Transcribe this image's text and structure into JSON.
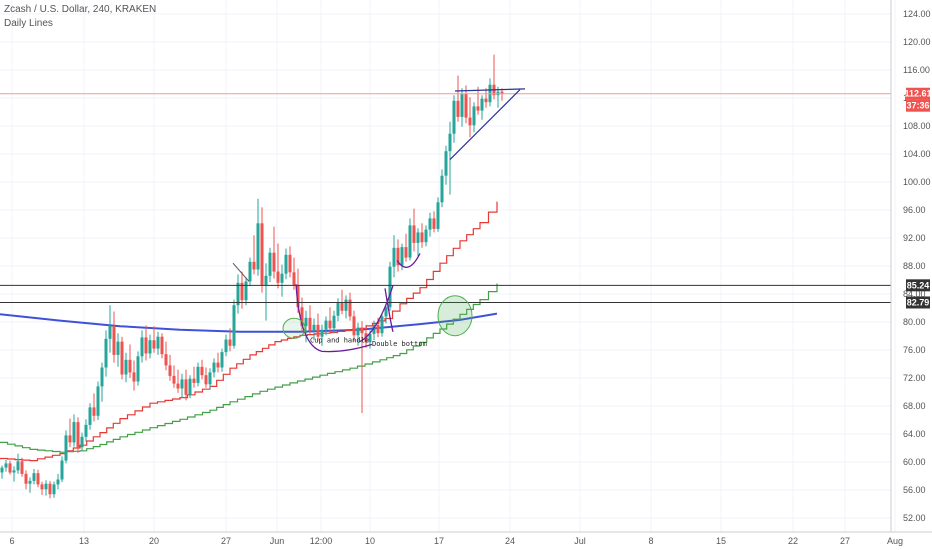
{
  "header": {
    "title": "Zcash / U.S. Dollar, 240, KRAKEN",
    "subtitle": "Daily Lines"
  },
  "colors": {
    "up": "#26a69a",
    "down": "#ef5350",
    "red_line": "#e53935",
    "green_line": "#43a047",
    "blue_line": "#3f51d9",
    "purple": "#6a1b9a",
    "navy": "#283593",
    "sr_line": "#333333",
    "price_line": "#ef9a9a",
    "circle": "#4caf50"
  },
  "chart_data": {
    "type": "candlestick",
    "y_range": [
      50,
      126
    ],
    "x_range": [
      0,
      890
    ],
    "y_ticks": [
      "124.00",
      "120.00",
      "116.00",
      "112.00",
      "108.00",
      "104.00",
      "100.00",
      "96.00",
      "92.00",
      "88.00",
      "84.00",
      "80.00",
      "76.00",
      "72.00",
      "68.00",
      "64.00",
      "60.00",
      "56.00",
      "52.00"
    ],
    "x_ticks": [
      {
        "label": "6",
        "x": 12
      },
      {
        "label": "13",
        "x": 84
      },
      {
        "label": "20",
        "x": 154
      },
      {
        "label": "27",
        "x": 226
      },
      {
        "label": "Jun",
        "x": 277
      },
      {
        "label": "12:00",
        "x": 321
      },
      {
        "label": "10",
        "x": 370
      },
      {
        "label": "17",
        "x": 439
      },
      {
        "label": "24",
        "x": 510
      },
      {
        "label": "Jul",
        "x": 580
      },
      {
        "label": "8",
        "x": 651
      },
      {
        "label": "15",
        "x": 721
      },
      {
        "label": "22",
        "x": 793
      },
      {
        "label": "27",
        "x": 845
      },
      {
        "label": "Aug",
        "x": 895
      }
    ],
    "price_labels": [
      {
        "text": "112.61",
        "value": 112.61,
        "color": "#ef5350"
      },
      {
        "text": "37:36",
        "value": 110.9,
        "color": "#ef5350"
      },
      {
        "text": "85.24",
        "value": 85.24,
        "color": "#333333"
      },
      {
        "text": "82.79",
        "value": 82.79,
        "color": "#333333"
      }
    ],
    "annotations": [
      {
        "text": "Cup and handle",
        "x": 310,
        "y": 77.1
      },
      {
        "text": "Double bottom",
        "x": 372,
        "y": 76.6
      }
    ],
    "horizontal_lines": [
      {
        "name": "current-price",
        "value": 112.61,
        "style": "price"
      },
      {
        "name": "resistance-upper",
        "value": 85.24,
        "style": "sr"
      },
      {
        "name": "resistance-lower",
        "value": 82.79,
        "style": "sr"
      }
    ],
    "blue_line": [
      [
        0,
        81.1
      ],
      [
        60,
        80.2
      ],
      [
        120,
        79.4
      ],
      [
        180,
        78.9
      ],
      [
        240,
        78.6
      ],
      [
        300,
        78.6
      ],
      [
        360,
        78.9
      ],
      [
        420,
        79.7
      ],
      [
        460,
        80.3
      ],
      [
        497,
        81.2
      ]
    ],
    "red_line": [
      [
        0,
        60.5
      ],
      [
        30,
        60.2
      ],
      [
        60,
        61.2
      ],
      [
        80,
        62.4
      ],
      [
        100,
        64.2
      ],
      [
        120,
        66.2
      ],
      [
        150,
        68.4
      ],
      [
        180,
        69.2
      ],
      [
        210,
        70.8
      ],
      [
        230,
        73.4
      ],
      [
        250,
        75.3
      ],
      [
        275,
        77.2
      ],
      [
        300,
        78.1
      ],
      [
        330,
        78.5
      ],
      [
        360,
        79.1
      ],
      [
        385,
        80.5
      ],
      [
        400,
        82.6
      ],
      [
        420,
        84.9
      ],
      [
        440,
        88.4
      ],
      [
        460,
        91.6
      ],
      [
        480,
        94.2
      ],
      [
        497,
        97.2
      ]
    ],
    "green_line": [
      [
        0,
        62.8
      ],
      [
        30,
        61.8
      ],
      [
        60,
        61.4
      ],
      [
        80,
        61.6
      ],
      [
        100,
        62.5
      ],
      [
        120,
        63.6
      ],
      [
        150,
        64.9
      ],
      [
        180,
        66.1
      ],
      [
        210,
        67.4
      ],
      [
        230,
        68.6
      ],
      [
        260,
        70.1
      ],
      [
        290,
        71.3
      ],
      [
        320,
        72.4
      ],
      [
        350,
        73.4
      ],
      [
        380,
        74.6
      ],
      [
        400,
        75.5
      ],
      [
        420,
        77.1
      ],
      [
        440,
        79.0
      ],
      [
        460,
        81.1
      ],
      [
        480,
        83.2
      ],
      [
        497,
        85.5
      ]
    ],
    "candles": [
      [
        2,
        58.5,
        59.5,
        57.6,
        59.2
      ],
      [
        6,
        59.2,
        60.3,
        58.6,
        59.8
      ],
      [
        10,
        59.8,
        60.2,
        58.2,
        58.5
      ],
      [
        14,
        58.5,
        59.4,
        57.2,
        58.8
      ],
      [
        18,
        58.8,
        61.2,
        58.3,
        60.1
      ],
      [
        22,
        60.1,
        60.6,
        57.9,
        58.3
      ],
      [
        26,
        58.3,
        58.8,
        56.1,
        56.9
      ],
      [
        30,
        56.9,
        57.8,
        55.6,
        57.3
      ],
      [
        34,
        57.3,
        59.0,
        56.8,
        58.4
      ],
      [
        38,
        58.4,
        58.9,
        56.4,
        56.8
      ],
      [
        42,
        56.8,
        57.2,
        55.3,
        56.1
      ],
      [
        46,
        56.1,
        57.4,
        55.2,
        56.9
      ],
      [
        50,
        56.9,
        57.3,
        54.8,
        55.4
      ],
      [
        54,
        55.4,
        57.2,
        54.9,
        56.8
      ],
      [
        58,
        56.8,
        58.3,
        56.1,
        57.5
      ],
      [
        62,
        57.5,
        60.8,
        57.1,
        60.2
      ],
      [
        66,
        60.2,
        64.5,
        59.8,
        63.8
      ],
      [
        70,
        63.8,
        66.2,
        62.1,
        62.8
      ],
      [
        74,
        62.8,
        66.8,
        62.2,
        65.7
      ],
      [
        78,
        65.7,
        66.4,
        61.3,
        62.1
      ],
      [
        82,
        62.1,
        64.2,
        61.5,
        63.6
      ],
      [
        86,
        63.6,
        66.1,
        62.9,
        65.3
      ],
      [
        90,
        65.3,
        68.4,
        64.6,
        67.8
      ],
      [
        94,
        67.8,
        69.8,
        65.8,
        66.6
      ],
      [
        98,
        66.6,
        71.5,
        66.0,
        70.8
      ],
      [
        102,
        70.8,
        74.2,
        68.6,
        73.5
      ],
      [
        106,
        73.5,
        78.8,
        72.2,
        77.6
      ],
      [
        110,
        77.6,
        82.4,
        75.6,
        79.4
      ],
      [
        114,
        79.4,
        81.5,
        74.2,
        75.3
      ],
      [
        118,
        75.3,
        78.4,
        73.6,
        77.2
      ],
      [
        122,
        77.2,
        77.9,
        71.8,
        72.5
      ],
      [
        126,
        72.5,
        75.6,
        71.4,
        74.6
      ],
      [
        130,
        74.6,
        76.8,
        72.0,
        72.8
      ],
      [
        134,
        72.8,
        74.5,
        70.2,
        71.5
      ],
      [
        138,
        71.5,
        75.8,
        70.9,
        75.1
      ],
      [
        142,
        75.1,
        78.8,
        74.2,
        77.8
      ],
      [
        146,
        77.8,
        79.5,
        74.5,
        75.5
      ],
      [
        150,
        75.5,
        78.2,
        74.8,
        77.4
      ],
      [
        154,
        77.4,
        79.4,
        75.6,
        76.2
      ],
      [
        158,
        76.2,
        78.6,
        75.3,
        77.9
      ],
      [
        162,
        77.9,
        78.4,
        74.8,
        75.4
      ],
      [
        166,
        75.4,
        77.2,
        73.1,
        73.8
      ],
      [
        170,
        73.8,
        75.3,
        71.6,
        72.3
      ],
      [
        174,
        72.3,
        73.8,
        70.6,
        71.2
      ],
      [
        178,
        71.2,
        73.2,
        69.9,
        70.5
      ],
      [
        182,
        70.5,
        72.6,
        69.2,
        71.8
      ],
      [
        186,
        71.8,
        73.2,
        68.8,
        69.6
      ],
      [
        190,
        69.6,
        72.4,
        69.1,
        71.9
      ],
      [
        194,
        71.9,
        73.6,
        70.6,
        71.3
      ],
      [
        198,
        71.3,
        74.2,
        70.8,
        73.6
      ],
      [
        202,
        73.6,
        74.6,
        71.8,
        72.4
      ],
      [
        206,
        72.4,
        73.5,
        70.6,
        71.1
      ],
      [
        210,
        71.1,
        73.4,
        70.4,
        72.8
      ],
      [
        214,
        72.8,
        74.8,
        72.1,
        74.2
      ],
      [
        218,
        74.2,
        75.6,
        72.8,
        73.5
      ],
      [
        222,
        73.5,
        76.2,
        72.9,
        75.7
      ],
      [
        226,
        75.7,
        78.2,
        75.1,
        77.5
      ],
      [
        230,
        77.5,
        79.1,
        75.8,
        76.6
      ],
      [
        234,
        76.6,
        83.2,
        76.2,
        82.4
      ],
      [
        238,
        82.4,
        86.8,
        81.2,
        85.6
      ],
      [
        242,
        85.6,
        87.2,
        81.9,
        83.1
      ],
      [
        246,
        83.1,
        86.4,
        82.4,
        85.8
      ],
      [
        250,
        85.8,
        89.2,
        85.1,
        88.6
      ],
      [
        254,
        88.6,
        92.4,
        86.8,
        87.5
      ],
      [
        258,
        87.5,
        97.6,
        86.6,
        94.1
      ],
      [
        262,
        94.1,
        96.4,
        84.2,
        85.3
      ],
      [
        266,
        85.3,
        88.4,
        80.2,
        86.6
      ],
      [
        270,
        86.6,
        90.6,
        85.7,
        89.9
      ],
      [
        274,
        89.9,
        93.6,
        86.2,
        87.2
      ],
      [
        278,
        87.2,
        91.2,
        84.8,
        85.6
      ],
      [
        282,
        85.6,
        88.2,
        83.6,
        86.9
      ],
      [
        286,
        86.9,
        90.5,
        86.1,
        89.6
      ],
      [
        290,
        89.6,
        90.8,
        86.4,
        87.1
      ],
      [
        294,
        87.1,
        89.2,
        84.6,
        85.3
      ],
      [
        298,
        85.3,
        87.6,
        81.3,
        82.1
      ],
      [
        302,
        82.1,
        83.5,
        78.6,
        79.4
      ],
      [
        306,
        79.4,
        81.6,
        77.1,
        80.6
      ],
      [
        310,
        80.6,
        82.4,
        78.3,
        78.8
      ],
      [
        314,
        78.8,
        80.5,
        77.4,
        79.6
      ],
      [
        318,
        79.6,
        81.2,
        77.3,
        77.9
      ],
      [
        322,
        77.9,
        79.6,
        76.6,
        78.9
      ],
      [
        326,
        78.9,
        80.8,
        78.1,
        80.2
      ],
      [
        330,
        80.2,
        82.1,
        78.6,
        79.1
      ],
      [
        334,
        79.1,
        81.6,
        78.4,
        80.9
      ],
      [
        338,
        80.9,
        83.4,
        80.1,
        82.7
      ],
      [
        342,
        82.7,
        84.6,
        81.1,
        81.6
      ],
      [
        346,
        81.6,
        83.8,
        80.5,
        83.2
      ],
      [
        350,
        83.2,
        84.2,
        80.2,
        80.8
      ],
      [
        354,
        80.8,
        81.6,
        77.2,
        78.1
      ],
      [
        358,
        78.1,
        79.9,
        76.6,
        79.2
      ],
      [
        362,
        79.2,
        80.1,
        67.0,
        78.4
      ],
      [
        366,
        78.4,
        79.6,
        76.3,
        77.1
      ],
      [
        370,
        77.1,
        78.8,
        76.2,
        78.3
      ],
      [
        374,
        78.3,
        80.2,
        77.4,
        79.6
      ],
      [
        378,
        79.6,
        80.6,
        77.8,
        78.4
      ],
      [
        382,
        78.4,
        81.2,
        77.9,
        80.8
      ],
      [
        386,
        80.8,
        82.6,
        79.8,
        82.1
      ],
      [
        390,
        82.1,
        88.6,
        81.6,
        87.9
      ],
      [
        394,
        87.9,
        92.4,
        86.4,
        90.6
      ],
      [
        398,
        90.6,
        91.8,
        87.2,
        88.1
      ],
      [
        402,
        88.1,
        91.2,
        87.4,
        90.7
      ],
      [
        406,
        90.7,
        92.6,
        88.6,
        89.2
      ],
      [
        410,
        89.2,
        94.8,
        88.8,
        93.8
      ],
      [
        414,
        93.8,
        96.2,
        90.1,
        91.3
      ],
      [
        418,
        91.3,
        93.4,
        89.4,
        92.8
      ],
      [
        422,
        92.8,
        94.1,
        90.6,
        91.4
      ],
      [
        426,
        91.4,
        93.8,
        90.8,
        93.2
      ],
      [
        430,
        93.2,
        95.6,
        92.2,
        94.8
      ],
      [
        434,
        94.8,
        95.8,
        92.8,
        93.3
      ],
      [
        438,
        93.3,
        97.8,
        92.9,
        97.1
      ],
      [
        442,
        97.1,
        101.8,
        96.4,
        100.9
      ],
      [
        446,
        100.9,
        105.2,
        99.6,
        104.4
      ],
      [
        450,
        104.4,
        108.6,
        98.2,
        106.9
      ],
      [
        454,
        106.9,
        112.4,
        105.6,
        111.6
      ],
      [
        458,
        111.6,
        115.2,
        108.6,
        109.3
      ],
      [
        462,
        109.3,
        113.4,
        107.9,
        112.6
      ],
      [
        466,
        112.6,
        113.8,
        108.4,
        109.2
      ],
      [
        470,
        109.2,
        112.1,
        106.4,
        108.1
      ],
      [
        474,
        108.1,
        111.4,
        107.1,
        110.8
      ],
      [
        478,
        110.8,
        113.6,
        109.6,
        110.2
      ],
      [
        482,
        110.2,
        112.4,
        108.9,
        111.9
      ],
      [
        486,
        111.9,
        113.4,
        110.6,
        111.4
      ],
      [
        490,
        111.4,
        114.8,
        110.8,
        113.9
      ],
      [
        494,
        113.9,
        118.2,
        111.8,
        112.4
      ],
      [
        498,
        112.4,
        113.6,
        110.6,
        112.9
      ],
      [
        502,
        112.9,
        113.4,
        111.6,
        112.61
      ]
    ]
  }
}
